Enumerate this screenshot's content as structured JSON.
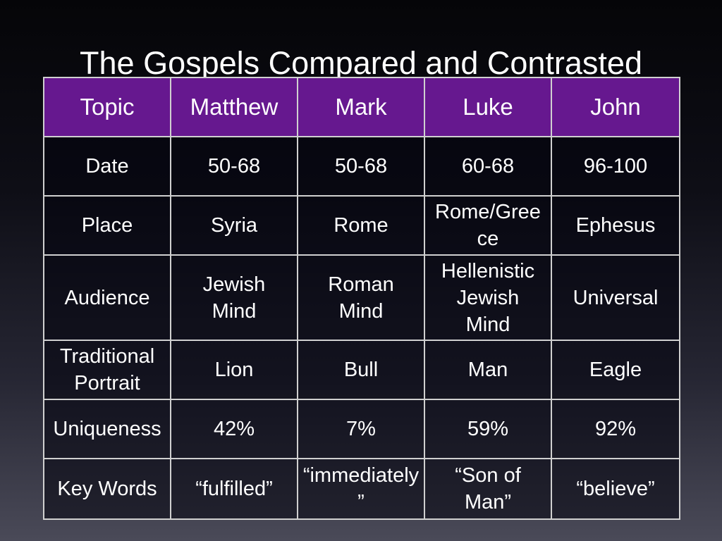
{
  "slide": {
    "title": "The Gospels Compared and Contrasted"
  },
  "table": {
    "headers": [
      "Topic",
      "Matthew",
      "Mark",
      "Luke",
      "John"
    ],
    "rows": [
      {
        "label": "Date",
        "cells": [
          [
            "50-68"
          ],
          [
            "50-68"
          ],
          [
            "60-68"
          ],
          [
            "96-100"
          ]
        ]
      },
      {
        "label": "Place",
        "cells": [
          [
            "Syria"
          ],
          [
            "Rome"
          ],
          [
            "Rome/Gree",
            "ce"
          ],
          [
            "Ephesus"
          ]
        ]
      },
      {
        "label": "Audience",
        "cells": [
          [
            "Jewish",
            "Mind"
          ],
          [
            "Roman",
            "Mind"
          ],
          [
            "Hellenistic",
            "Jewish",
            "Mind"
          ],
          [
            "Universal"
          ]
        ]
      },
      {
        "label_lines": [
          "Traditional",
          "Portrait"
        ],
        "cells": [
          [
            "Lion"
          ],
          [
            "Bull"
          ],
          [
            "Man"
          ],
          [
            "Eagle"
          ]
        ]
      },
      {
        "label": "Uniqueness",
        "cells": [
          [
            "42%"
          ],
          [
            "7%"
          ],
          [
            "59%"
          ],
          [
            "92%"
          ]
        ]
      },
      {
        "label": "Key Words",
        "cells": [
          [
            "“fulfilled”"
          ],
          [
            "“immediately”"
          ],
          [
            "“Son of",
            "Man”"
          ],
          [
            "“believe”"
          ]
        ]
      }
    ]
  },
  "colors": {
    "header_background": "#66188f",
    "border": "#d0d0d0",
    "text": "#ffffff"
  }
}
